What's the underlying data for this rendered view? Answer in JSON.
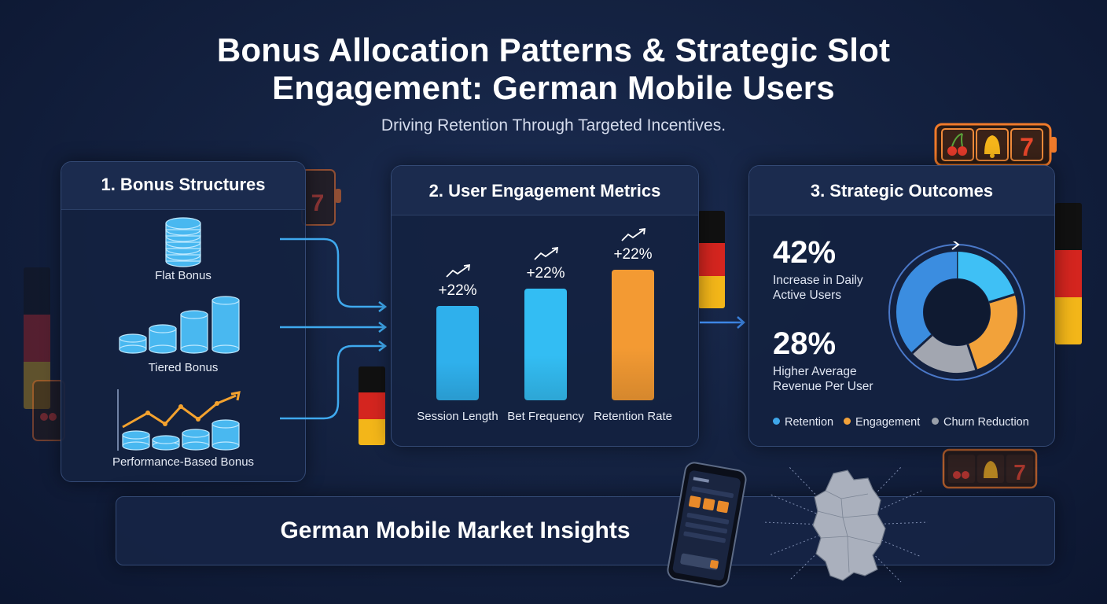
{
  "header": {
    "title_line1": "Bonus Allocation Patterns & Strategic Slot",
    "title_line2": "Engagement: German Mobile Users",
    "subtitle": "Driving Retention Through Targeted Incentives."
  },
  "panel1": {
    "title": "1. Bonus Structures",
    "items": [
      {
        "label": "Flat Bonus",
        "icon": "coin-stack-icon"
      },
      {
        "label": "Tiered Bonus",
        "icon": "tiered-coin-stacks-icon"
      },
      {
        "label": "Performance-Based Bonus",
        "icon": "performance-coins-chart-icon"
      }
    ]
  },
  "panel2": {
    "title": "2. User Engagement Metrics",
    "chart_data": {
      "type": "bar",
      "categories": [
        "Session Length",
        "Bet Frequency",
        "Retention Rate"
      ],
      "values": [
        120,
        142,
        166
      ],
      "value_labels": [
        "+22%",
        "+22%",
        "+22%"
      ],
      "ylim": [
        0,
        200
      ],
      "colors": [
        "#2fb0ec",
        "#33bdf3",
        "#f39a33"
      ],
      "title": "",
      "xlabel": "",
      "ylabel": ""
    }
  },
  "panel3": {
    "title": "3. Strategic Outcomes",
    "stats": [
      {
        "value": "42%",
        "line1": "Increase in Daily",
        "line2": "Active Users"
      },
      {
        "value": "28%",
        "line1": "Higher Average",
        "line2": "Revenue Per User"
      }
    ],
    "chart_data": {
      "type": "pie",
      "donut": true,
      "segments": [
        {
          "name": "Retention",
          "value": 30,
          "color": "#3a8fe0"
        },
        {
          "name": "Engagement",
          "value": 20,
          "color": "#f2a23a"
        },
        {
          "name": "Churn Reduction",
          "value": 15,
          "color": "#a2a6b0"
        }
      ],
      "legend": [
        {
          "label": "Retention",
          "color": "#3fa7ea"
        },
        {
          "label": "Engagement",
          "color": "#f2a23a"
        },
        {
          "label": "Churn Reduction",
          "color": "#9aa0aa"
        }
      ],
      "legend_position": "bottom"
    }
  },
  "footer": {
    "title": "German Mobile Market Insights"
  },
  "colors": {
    "accent_blue": "#36b6f1",
    "accent_orange": "#f39a33",
    "panel_bg": "#142240",
    "border": "#344a75"
  }
}
